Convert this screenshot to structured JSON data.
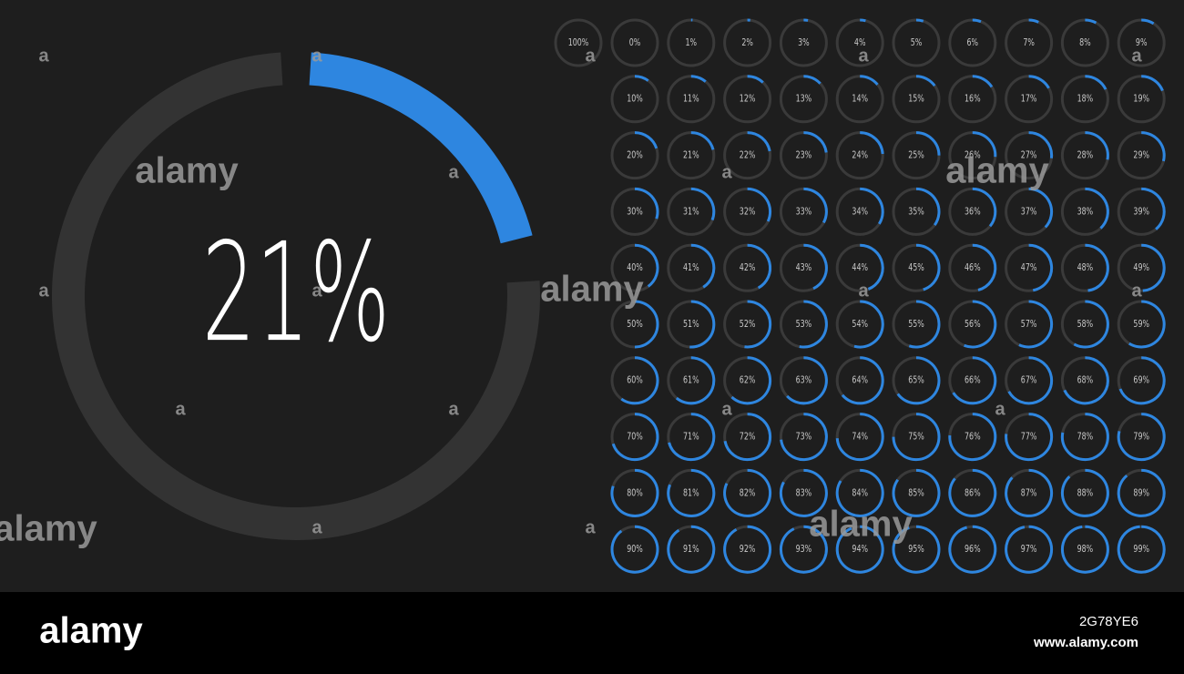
{
  "main_meter": {
    "value": 21,
    "label": "21%"
  },
  "meters": [
    {
      "value": 100,
      "label": "100%"
    },
    {
      "value": 0,
      "label": "0%"
    },
    {
      "value": 1,
      "label": "1%"
    },
    {
      "value": 2,
      "label": "2%"
    },
    {
      "value": 3,
      "label": "3%"
    },
    {
      "value": 4,
      "label": "4%"
    },
    {
      "value": 5,
      "label": "5%"
    },
    {
      "value": 6,
      "label": "6%"
    },
    {
      "value": 7,
      "label": "7%"
    },
    {
      "value": 8,
      "label": "8%"
    },
    {
      "value": 9,
      "label": "9%"
    },
    {
      "value": 10,
      "label": "10%"
    },
    {
      "value": 11,
      "label": "11%"
    },
    {
      "value": 12,
      "label": "12%"
    },
    {
      "value": 13,
      "label": "13%"
    },
    {
      "value": 14,
      "label": "14%"
    },
    {
      "value": 15,
      "label": "15%"
    },
    {
      "value": 16,
      "label": "16%"
    },
    {
      "value": 17,
      "label": "17%"
    },
    {
      "value": 18,
      "label": "18%"
    },
    {
      "value": 19,
      "label": "19%"
    },
    {
      "value": 20,
      "label": "20%"
    },
    {
      "value": 21,
      "label": "21%"
    },
    {
      "value": 22,
      "label": "22%"
    },
    {
      "value": 23,
      "label": "23%"
    },
    {
      "value": 24,
      "label": "24%"
    },
    {
      "value": 25,
      "label": "25%"
    },
    {
      "value": 26,
      "label": "26%"
    },
    {
      "value": 27,
      "label": "27%"
    },
    {
      "value": 28,
      "label": "28%"
    },
    {
      "value": 29,
      "label": "29%"
    },
    {
      "value": 30,
      "label": "30%"
    },
    {
      "value": 31,
      "label": "31%"
    },
    {
      "value": 32,
      "label": "32%"
    },
    {
      "value": 33,
      "label": "33%"
    },
    {
      "value": 34,
      "label": "34%"
    },
    {
      "value": 35,
      "label": "35%"
    },
    {
      "value": 36,
      "label": "36%"
    },
    {
      "value": 37,
      "label": "37%"
    },
    {
      "value": 38,
      "label": "38%"
    },
    {
      "value": 39,
      "label": "39%"
    },
    {
      "value": 40,
      "label": "40%"
    },
    {
      "value": 41,
      "label": "41%"
    },
    {
      "value": 42,
      "label": "42%"
    },
    {
      "value": 43,
      "label": "43%"
    },
    {
      "value": 44,
      "label": "44%"
    },
    {
      "value": 45,
      "label": "45%"
    },
    {
      "value": 46,
      "label": "46%"
    },
    {
      "value": 47,
      "label": "47%"
    },
    {
      "value": 48,
      "label": "48%"
    },
    {
      "value": 49,
      "label": "49%"
    },
    {
      "value": 50,
      "label": "50%"
    },
    {
      "value": 51,
      "label": "51%"
    },
    {
      "value": 52,
      "label": "52%"
    },
    {
      "value": 53,
      "label": "53%"
    },
    {
      "value": 54,
      "label": "54%"
    },
    {
      "value": 55,
      "label": "55%"
    },
    {
      "value": 56,
      "label": "56%"
    },
    {
      "value": 57,
      "label": "57%"
    },
    {
      "value": 58,
      "label": "58%"
    },
    {
      "value": 59,
      "label": "59%"
    },
    {
      "value": 60,
      "label": "60%"
    },
    {
      "value": 61,
      "label": "61%"
    },
    {
      "value": 62,
      "label": "62%"
    },
    {
      "value": 63,
      "label": "63%"
    },
    {
      "value": 64,
      "label": "64%"
    },
    {
      "value": 65,
      "label": "65%"
    },
    {
      "value": 66,
      "label": "66%"
    },
    {
      "value": 67,
      "label": "67%"
    },
    {
      "value": 68,
      "label": "68%"
    },
    {
      "value": 69,
      "label": "69%"
    },
    {
      "value": 70,
      "label": "70%"
    },
    {
      "value": 71,
      "label": "71%"
    },
    {
      "value": 72,
      "label": "72%"
    },
    {
      "value": 73,
      "label": "73%"
    },
    {
      "value": 74,
      "label": "74%"
    },
    {
      "value": 75,
      "label": "75%"
    },
    {
      "value": 76,
      "label": "76%"
    },
    {
      "value": 77,
      "label": "77%"
    },
    {
      "value": 78,
      "label": "78%"
    },
    {
      "value": 79,
      "label": "79%"
    },
    {
      "value": 80,
      "label": "80%"
    },
    {
      "value": 81,
      "label": "81%"
    },
    {
      "value": 82,
      "label": "82%"
    },
    {
      "value": 83,
      "label": "83%"
    },
    {
      "value": 84,
      "label": "84%"
    },
    {
      "value": 85,
      "label": "85%"
    },
    {
      "value": 86,
      "label": "86%"
    },
    {
      "value": 87,
      "label": "87%"
    },
    {
      "value": 88,
      "label": "88%"
    },
    {
      "value": 89,
      "label": "89%"
    },
    {
      "value": 90,
      "label": "90%"
    },
    {
      "value": 91,
      "label": "91%"
    },
    {
      "value": 92,
      "label": "92%"
    },
    {
      "value": 93,
      "label": "93%"
    },
    {
      "value": 94,
      "label": "94%"
    },
    {
      "value": 95,
      "label": "95%"
    },
    {
      "value": 96,
      "label": "96%"
    },
    {
      "value": 97,
      "label": "97%"
    },
    {
      "value": 98,
      "label": "98%"
    },
    {
      "value": 99,
      "label": "99%"
    }
  ],
  "watermarks": [
    "alamy",
    "alamy",
    "alamy",
    "alamy",
    "alamy",
    "a",
    "a",
    "a",
    "a",
    "a",
    "a",
    "a",
    "a",
    "a",
    "a",
    "a",
    "a",
    "a",
    "a",
    "a",
    "a",
    "a"
  ],
  "footer": {
    "logo": "alamy",
    "image_id": "2G78YE6",
    "url": "www.alamy.com"
  }
}
